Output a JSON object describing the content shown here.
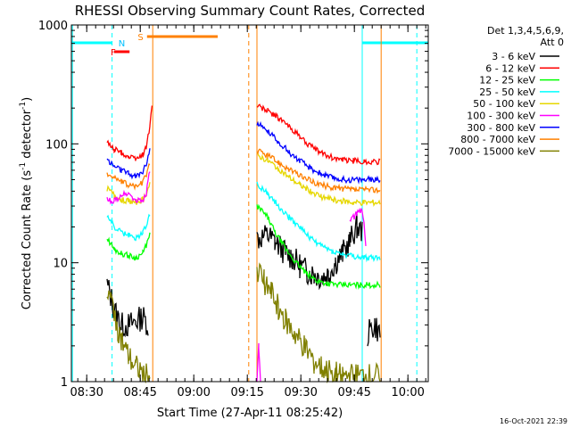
{
  "chart_data": {
    "type": "line",
    "title": "RHESSI Observing Summary Count Rates, Corrected",
    "xlabel": "Start Time (27-Apr-11 08:25:42)",
    "ylabel_main": "Corrected Count Rate (s",
    "ylabel_sup1": "-1",
    "ylabel_mid": " detector",
    "ylabel_sup2": "-1",
    "ylabel_end": ")",
    "timestamp": "16-Oct-2021 22:39",
    "yscale": "log",
    "ylim": [
      1,
      1000
    ],
    "xlim": [
      0,
      100
    ],
    "grid": false,
    "legend_position": "right",
    "legend_header": [
      "Det 1,3,4,5,6,9,",
      "Att 0"
    ],
    "x_ticks": [
      {
        "label": "08:30",
        "value": 4.3
      },
      {
        "label": "08:45",
        "value": 19.3
      },
      {
        "label": "09:00",
        "value": 34.3
      },
      {
        "label": "09:15",
        "value": 49.3
      },
      {
        "label": "09:30",
        "value": 64.3
      },
      {
        "label": "09:45",
        "value": 79.3
      },
      {
        "label": "10:00",
        "value": 94.3
      }
    ],
    "y_ticks": [
      {
        "label": "1",
        "value": 1
      },
      {
        "label": "10",
        "value": 10
      },
      {
        "label": "100",
        "value": 100
      },
      {
        "label": "1000",
        "value": 1000
      }
    ],
    "series": [
      {
        "name": "3 - 6 keV",
        "color": "#000000",
        "segments": [
          [
            [
              10,
              6.5
            ],
            [
              12,
              4
            ],
            [
              14,
              3
            ],
            [
              16,
              3
            ],
            [
              18,
              3.2
            ],
            [
              20,
              3.5
            ],
            [
              21.5,
              3
            ]
          ],
          [
            [
              52,
              16
            ],
            [
              55,
              17
            ],
            [
              57,
              15
            ],
            [
              60,
              12
            ],
            [
              62,
              11
            ],
            [
              64,
              9.5
            ],
            [
              66,
              8.5
            ],
            [
              68,
              8
            ],
            [
              70,
              7.5
            ],
            [
              72,
              8
            ],
            [
              74,
              10
            ],
            [
              76,
              12
            ],
            [
              78,
              15
            ],
            [
              80,
              20
            ],
            [
              81.5,
              18
            ]
          ],
          [
            [
              83,
              2.5
            ],
            [
              85,
              3
            ],
            [
              86.5,
              2.5
            ]
          ]
        ]
      },
      {
        "name": "6 - 12 keV",
        "color": "#ff0000",
        "segments": [
          [
            [
              10,
              102
            ],
            [
              12,
              90
            ],
            [
              14,
              84
            ],
            [
              16,
              78
            ],
            [
              18,
              75
            ],
            [
              20,
              80
            ],
            [
              21,
              95
            ],
            [
              22,
              140
            ],
            [
              22.6,
              210
            ]
          ],
          [
            [
              52,
              210
            ],
            [
              55,
              190
            ],
            [
              58,
              165
            ],
            [
              61,
              140
            ],
            [
              64,
              115
            ],
            [
              67,
              95
            ],
            [
              70,
              84
            ],
            [
              73,
              77
            ],
            [
              76,
              73
            ],
            [
              79,
              72
            ],
            [
              82,
              71
            ],
            [
              86.5,
              71
            ]
          ]
        ]
      },
      {
        "name": "12 - 25 keV",
        "color": "#00ff00",
        "segments": [
          [
            [
              10,
              16
            ],
            [
              12,
              13
            ],
            [
              14,
              12
            ],
            [
              16,
              11.5
            ],
            [
              18,
              11
            ],
            [
              20,
              12
            ],
            [
              21,
              14
            ],
            [
              22,
              17
            ]
          ],
          [
            [
              52,
              30
            ],
            [
              55,
              24
            ],
            [
              57,
              18
            ],
            [
              60,
              13
            ],
            [
              63,
              10
            ],
            [
              66,
              8
            ],
            [
              69,
              7
            ],
            [
              72,
              6.7
            ],
            [
              75,
              6.5
            ],
            [
              78,
              6.5
            ],
            [
              81,
              6.5
            ],
            [
              86.5,
              6.5
            ]
          ]
        ]
      },
      {
        "name": "25 - 50 keV",
        "color": "#00ffff",
        "segments": [
          [
            [
              10,
              25
            ],
            [
              12,
              20
            ],
            [
              14,
              18
            ],
            [
              16,
              17
            ],
            [
              18,
              16
            ],
            [
              20,
              18
            ],
            [
              21,
              21
            ],
            [
              22,
              25
            ]
          ],
          [
            [
              52,
              46
            ],
            [
              55,
              38
            ],
            [
              58,
              30
            ],
            [
              61,
              24
            ],
            [
              64,
              20
            ],
            [
              67,
              16
            ],
            [
              70,
              14
            ],
            [
              73,
              12.5
            ],
            [
              76,
              11.8
            ],
            [
              79,
              11.3
            ],
            [
              82,
              11
            ],
            [
              86.5,
              11
            ]
          ]
        ]
      },
      {
        "name": "50 - 100 keV",
        "color": "#e6d700",
        "segments": [
          [
            [
              10,
              42
            ],
            [
              12,
              37
            ],
            [
              14,
              34
            ],
            [
              16,
              33
            ],
            [
              18,
              32
            ],
            [
              20,
              34
            ],
            [
              21,
              38
            ],
            [
              22,
              46
            ]
          ],
          [
            [
              52,
              80
            ],
            [
              55,
              72
            ],
            [
              58,
              62
            ],
            [
              61,
              52
            ],
            [
              64,
              45
            ],
            [
              67,
              40
            ],
            [
              70,
              36
            ],
            [
              73,
              34
            ],
            [
              76,
              33
            ],
            [
              79,
              32
            ],
            [
              82,
              32
            ],
            [
              86.5,
              32
            ]
          ]
        ]
      },
      {
        "name": "100 - 300 keV",
        "color": "#ff00ff",
        "segments": [
          [
            [
              10,
              34
            ],
            [
              12,
              33
            ],
            [
              14,
              37
            ],
            [
              16,
              38
            ],
            [
              18,
              33
            ],
            [
              20,
              33
            ],
            [
              21,
              38
            ],
            [
              22,
              60
            ]
          ],
          [
            [
              52,
              1
            ],
            [
              52.5,
              2
            ],
            [
              53,
              1
            ]
          ],
          [
            [
              78,
              22
            ],
            [
              80,
              26
            ],
            [
              81.5,
              28
            ],
            [
              82.5,
              14
            ]
          ]
        ]
      },
      {
        "name": "300 - 800 keV",
        "color": "#0000ff",
        "segments": [
          [
            [
              10,
              73
            ],
            [
              12,
              65
            ],
            [
              14,
              60
            ],
            [
              16,
              56
            ],
            [
              18,
              53
            ],
            [
              20,
              58
            ],
            [
              21,
              68
            ],
            [
              22,
              90
            ]
          ],
          [
            [
              52,
              148
            ],
            [
              55,
              128
            ],
            [
              58,
              105
            ],
            [
              61,
              85
            ],
            [
              64,
              72
            ],
            [
              67,
              62
            ],
            [
              70,
              56
            ],
            [
              73,
              52
            ],
            [
              76,
              50
            ],
            [
              79,
              50
            ],
            [
              82,
              50
            ],
            [
              86.5,
              50
            ]
          ]
        ]
      },
      {
        "name": "800 - 7000 keV",
        "color": "#ff8000",
        "segments": [
          [
            [
              10,
              57
            ],
            [
              12,
              52
            ],
            [
              14,
              48
            ],
            [
              16,
              45
            ],
            [
              18,
              44
            ],
            [
              20,
              47
            ],
            [
              21,
              55
            ],
            [
              22,
              70
            ]
          ],
          [
            [
              52,
              88
            ],
            [
              55,
              80
            ],
            [
              58,
              70
            ],
            [
              61,
              61
            ],
            [
              64,
              54
            ],
            [
              67,
              49
            ],
            [
              70,
              45
            ],
            [
              73,
              43
            ],
            [
              76,
              42
            ],
            [
              79,
              41
            ],
            [
              82,
              41
            ],
            [
              86.5,
              41
            ]
          ]
        ]
      },
      {
        "name": "7000 - 15000 keV",
        "color": "#808000",
        "segments": [
          [
            [
              10,
              5.5
            ],
            [
              11,
              4.8
            ],
            [
              12,
              4
            ],
            [
              13,
              2.8
            ],
            [
              14,
              2.2
            ],
            [
              16,
              1.6
            ],
            [
              18,
              1.3
            ],
            [
              20,
              1.2
            ],
            [
              22,
              1.1
            ]
          ],
          [
            [
              52,
              9
            ],
            [
              54,
              7
            ],
            [
              56,
              5.5
            ],
            [
              58,
              4.2
            ],
            [
              60,
              3.2
            ],
            [
              62,
              2.6
            ],
            [
              64,
              2.2
            ],
            [
              66,
              1.8
            ],
            [
              68,
              1.5
            ],
            [
              70,
              1.3
            ],
            [
              72,
              1.2
            ],
            [
              74,
              1.15
            ],
            [
              76,
              1.1
            ],
            [
              78,
              1.1
            ],
            [
              80,
              1.1
            ],
            [
              82,
              1.1
            ],
            [
              86.5,
              1.1
            ]
          ]
        ]
      }
    ],
    "flags": [
      {
        "label": "F",
        "color": "#ff0000",
        "label_x": 11.0,
        "bar_start": 12.0,
        "bar_end": 16.3,
        "level": 1
      },
      {
        "label": "N",
        "color": "#00c0ff",
        "label_x": 13.2,
        "bar_start": 0,
        "bar_end": 0,
        "level": 0
      },
      {
        "label": "S",
        "color": "#ff8000",
        "label_x": 18.6,
        "bar_start": 21.2,
        "bar_end": 41.0,
        "level": 2
      }
    ],
    "saa_segments": [
      {
        "start": 0,
        "end": 11.4
      },
      {
        "start": 81.5,
        "end": 100
      }
    ],
    "vlines": [
      {
        "x": 0.3,
        "color": "#00ffff",
        "style": "solid"
      },
      {
        "x": 11.4,
        "color": "#00ffff",
        "style": "dashed"
      },
      {
        "x": 22.8,
        "color": "#ff8000",
        "style": "solid"
      },
      {
        "x": 49.7,
        "color": "#ff8000",
        "style": "dashed"
      },
      {
        "x": 52.0,
        "color": "#ff8000",
        "style": "solid"
      },
      {
        "x": 81.5,
        "color": "#00ffff",
        "style": "solid"
      },
      {
        "x": 86.8,
        "color": "#ff8000",
        "style": "solid"
      },
      {
        "x": 96.8,
        "color": "#00ffff",
        "style": "dashed"
      }
    ]
  }
}
